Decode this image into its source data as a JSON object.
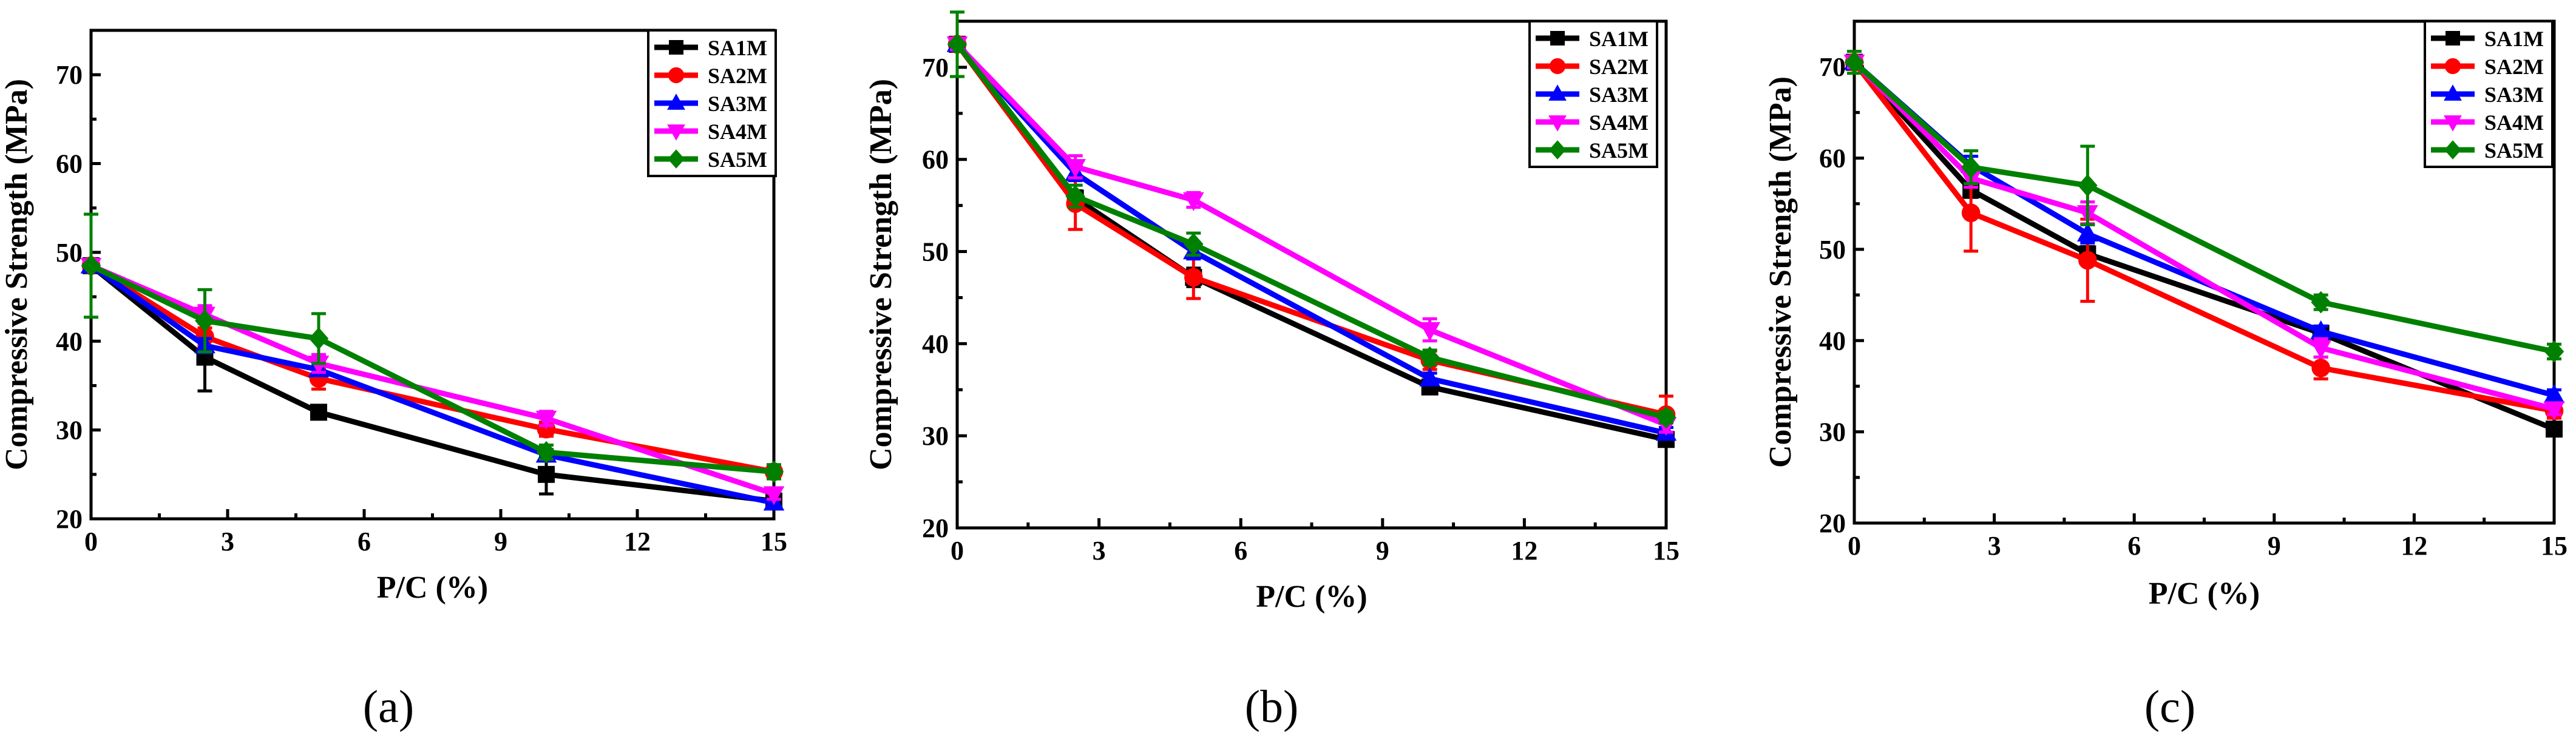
{
  "chart_data": [
    {
      "type": "line",
      "panel_label": "(a)",
      "xlabel": "P/C (%)",
      "ylabel": "Compressive Strength (MPa)",
      "x": [
        0,
        2.5,
        5,
        10,
        15
      ],
      "xlim": [
        0,
        15
      ],
      "ylim": [
        20,
        75
      ],
      "xticks": [
        0,
        3,
        6,
        9,
        12,
        15
      ],
      "yticks": [
        20,
        30,
        40,
        50,
        60,
        70
      ],
      "grid": false,
      "legend_position": "top-right",
      "series": [
        {
          "name": "SA1M",
          "marker": "square",
          "color": "#000000",
          "values": [
            48.5,
            38.2,
            32.0,
            25.0,
            22.0
          ],
          "errors": [
            0,
            3.8,
            0.6,
            2.2,
            0
          ]
        },
        {
          "name": "SA2M",
          "marker": "circle",
          "color": "#ff0000",
          "values": [
            48.5,
            40.5,
            35.8,
            30.1,
            25.3
          ],
          "errors": [
            0,
            1.0,
            1.2,
            0.8,
            0
          ]
        },
        {
          "name": "SA3M",
          "marker": "triangle-up",
          "color": "#0000ff",
          "values": [
            48.5,
            39.5,
            36.8,
            27.2,
            21.8
          ],
          "errors": [
            0,
            0.8,
            0.6,
            0.6,
            0.4
          ]
        },
        {
          "name": "SA4M",
          "marker": "triangle-down",
          "color": "#ff00ff",
          "values": [
            48.5,
            43.0,
            37.5,
            31.3,
            22.8
          ],
          "errors": [
            0,
            1.0,
            1.0,
            0.8,
            0.6
          ]
        },
        {
          "name": "SA5M",
          "marker": "diamond",
          "color": "#008000",
          "values": [
            48.5,
            42.3,
            40.3,
            27.5,
            25.3
          ],
          "errors": [
            5.8,
            3.5,
            2.8,
            0.8,
            0.8
          ]
        }
      ]
    },
    {
      "type": "line",
      "panel_label": "(b)",
      "xlabel": "P/C (%)",
      "ylabel": "Compressive Strength (MPa)",
      "x": [
        0,
        2.5,
        5,
        10,
        15
      ],
      "xlim": [
        0,
        15
      ],
      "ylim": [
        20,
        75
      ],
      "xticks": [
        0,
        3,
        6,
        9,
        12,
        15
      ],
      "yticks": [
        20,
        30,
        40,
        50,
        60,
        70
      ],
      "grid": false,
      "legend_position": "top-right",
      "series": [
        {
          "name": "SA1M",
          "marker": "square",
          "color": "#000000",
          "values": [
            72.5,
            55.8,
            47.2,
            35.3,
            29.6
          ],
          "errors": [
            0.6,
            0.8,
            1.0,
            0.6,
            0.6
          ]
        },
        {
          "name": "SA2M",
          "marker": "circle",
          "color": "#ff0000",
          "values": [
            72.5,
            55.2,
            47.2,
            38.2,
            32.3
          ],
          "errors": [
            0.6,
            2.8,
            2.3,
            1.0,
            2.0
          ]
        },
        {
          "name": "SA3M",
          "marker": "triangle-up",
          "color": "#0000ff",
          "values": [
            72.5,
            58.5,
            50.0,
            36.2,
            30.3
          ],
          "errors": [
            0.6,
            0.8,
            0.8,
            0.6,
            0.6
          ]
        },
        {
          "name": "SA4M",
          "marker": "triangle-down",
          "color": "#ff00ff",
          "values": [
            72.5,
            59.2,
            55.6,
            41.5,
            31.2
          ],
          "errors": [
            0.6,
            1.2,
            0.8,
            1.2,
            0.8
          ]
        },
        {
          "name": "SA5M",
          "marker": "diamond",
          "color": "#008000",
          "values": [
            72.5,
            56.0,
            50.8,
            38.5,
            32.0
          ],
          "errors": [
            3.5,
            1.2,
            1.2,
            0.8,
            0.6
          ]
        }
      ]
    },
    {
      "type": "line",
      "panel_label": "(c)",
      "xlabel": "P/C (%)",
      "ylabel": "Compressive Strength (MPa)",
      "x": [
        0,
        2.5,
        5,
        10,
        15
      ],
      "xlim": [
        0,
        15
      ],
      "ylim": [
        20,
        75
      ],
      "xticks": [
        0,
        3,
        6,
        9,
        12,
        15
      ],
      "yticks": [
        20,
        30,
        40,
        50,
        60,
        70
      ],
      "grid": false,
      "legend_position": "top-right",
      "series": [
        {
          "name": "SA1M",
          "marker": "square",
          "color": "#000000",
          "values": [
            70.5,
            56.5,
            49.5,
            40.8,
            30.3
          ],
          "errors": [
            0.6,
            0.8,
            0.8,
            0.6,
            0.6
          ]
        },
        {
          "name": "SA2M",
          "marker": "circle",
          "color": "#ff0000",
          "values": [
            70.5,
            54.0,
            48.8,
            37.0,
            32.3
          ],
          "errors": [
            0.6,
            4.2,
            4.5,
            1.2,
            0.8
          ]
        },
        {
          "name": "SA3M",
          "marker": "triangle-up",
          "color": "#0000ff",
          "values": [
            70.5,
            59.2,
            51.7,
            41.0,
            34.0
          ],
          "errors": [
            0.6,
            1.0,
            1.0,
            0.6,
            0.6
          ]
        },
        {
          "name": "SA4M",
          "marker": "triangle-down",
          "color": "#ff00ff",
          "values": [
            70.5,
            57.8,
            54.0,
            39.2,
            32.5
          ],
          "errors": [
            0.6,
            1.0,
            1.2,
            1.0,
            0.6
          ]
        },
        {
          "name": "SA5M",
          "marker": "diamond",
          "color": "#008000",
          "values": [
            70.5,
            59.0,
            57.0,
            44.2,
            38.8
          ],
          "errors": [
            1.2,
            1.8,
            4.3,
            0.8,
            0.8
          ]
        }
      ]
    }
  ]
}
